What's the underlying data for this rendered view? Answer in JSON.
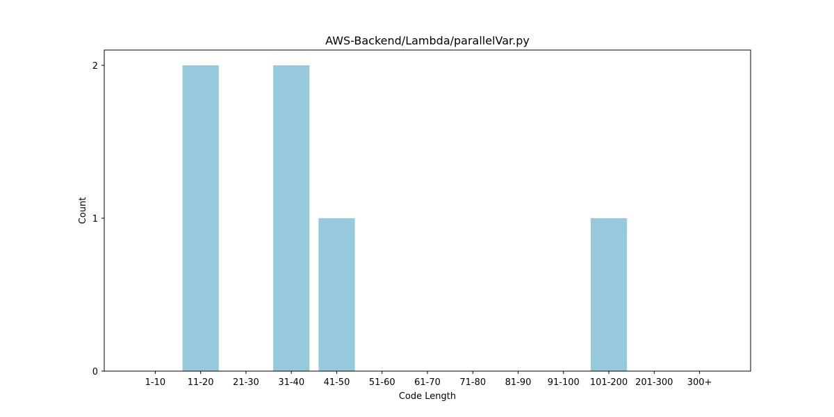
{
  "chart_data": {
    "type": "bar",
    "title": "AWS-Backend/Lambda/parallelVar.py",
    "xlabel": "Code Length",
    "ylabel": "Count",
    "categories": [
      "1-10",
      "11-20",
      "21-30",
      "31-40",
      "41-50",
      "51-60",
      "61-70",
      "71-80",
      "81-90",
      "91-100",
      "101-200",
      "201-300",
      "300+"
    ],
    "values": [
      0,
      2,
      0,
      2,
      1,
      0,
      0,
      0,
      0,
      0,
      1,
      0,
      0
    ],
    "ylim": [
      0,
      2.1
    ],
    "yticks": [
      0,
      1,
      2
    ],
    "grid": false,
    "bar_color": "#96c9dc",
    "axis_color": "#000000"
  }
}
